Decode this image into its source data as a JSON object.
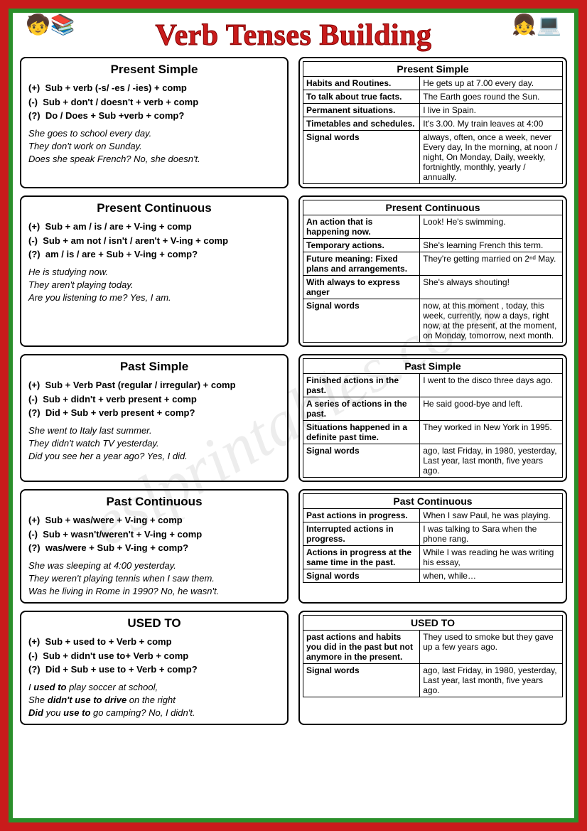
{
  "page_title": "Verb Tenses Building",
  "watermark": "eslprintables.com",
  "sections": [
    {
      "left": {
        "title": "Present Simple",
        "formulas": [
          {
            "sign": "(+)",
            "text": "Sub + verb (-s/ -es / -ies) + comp"
          },
          {
            "sign": "(-)",
            "text": "Sub + don't / doesn't + verb + comp"
          },
          {
            "sign": "(?)",
            "text": "Do / Does + Sub +verb + comp?"
          }
        ],
        "examples": [
          "She goes to school every day.",
          "They don't work on Sunday.",
          "Does she speak French? No, she doesn't."
        ]
      },
      "right": {
        "title": "Present Simple",
        "rows": [
          {
            "label": "Habits and Routines.",
            "ex": "He gets up at 7.00 every day."
          },
          {
            "label": "To talk about true facts.",
            "ex": "The Earth goes round the Sun."
          },
          {
            "label": "Permanent situations.",
            "ex": "I live in Spain."
          },
          {
            "label": "Timetables and schedules.",
            "ex": "It's 3.00. My train leaves at 4:00"
          },
          {
            "label": "Signal words",
            "ex": "always, often, once a week, never Every day, In the morning, at noon / night, On Monday, Daily, weekly, fortnightly, monthly, yearly / annually."
          }
        ]
      }
    },
    {
      "left": {
        "title": "Present Continuous",
        "formulas": [
          {
            "sign": "(+)",
            "text": "Sub + am / is / are + V-ing + comp"
          },
          {
            "sign": "(-)",
            "text": "Sub + am not / isn't / aren't + V-ing + comp"
          },
          {
            "sign": "(?)",
            "text": "am / is / are + Sub + V-ing + comp?"
          }
        ],
        "examples": [
          "He is studying now.",
          "They aren't playing today.",
          "Are you listening to me? Yes, I am."
        ]
      },
      "right": {
        "title": "Present Continuous",
        "rows": [
          {
            "label": "An action that is happening now.",
            "ex": "Look! He's swimming."
          },
          {
            "label": "Temporary actions.",
            "ex": "She's learning French this term."
          },
          {
            "label": "Future meaning: Fixed plans and arrangements.",
            "ex": "They're getting married on 2ⁿᵈ May."
          },
          {
            "label": "With always to express anger",
            "ex": "She's always shouting!"
          },
          {
            "label": "Signal words",
            "ex": "now, at this moment , today, this week, currently, now a days, right now, at the present, at the moment, on Monday, tomorrow, next month."
          }
        ]
      }
    },
    {
      "left": {
        "title": "Past Simple",
        "formulas": [
          {
            "sign": "(+)",
            "text": "Sub + Verb Past (regular / irregular) + comp"
          },
          {
            "sign": "(-)",
            "text": "Sub + didn't + verb present + comp"
          },
          {
            "sign": "(?)",
            "text": "Did + Sub + verb present + comp?"
          }
        ],
        "examples": [
          "She went to Italy last summer.",
          "They didn't watch TV yesterday.",
          "Did you see her a year ago? Yes, I did."
        ]
      },
      "right": {
        "title": "Past Simple",
        "rows": [
          {
            "label": "Finished actions in the past.",
            "ex": "I went to the disco three days ago."
          },
          {
            "label": "A series of actions in the past.",
            "ex": "He said good-bye and left."
          },
          {
            "label": "Situations happened in a definite past time.",
            "ex": "They worked in New York in 1995."
          },
          {
            "label": "Signal words",
            "ex": "ago, last Friday, in 1980, yesterday, Last year, last month, five years ago."
          }
        ]
      }
    },
    {
      "left": {
        "title": "Past Continuous",
        "formulas": [
          {
            "sign": "(+)",
            "text": "Sub + was/were + V-ing + comp"
          },
          {
            "sign": "(-)",
            "text": "Sub + wasn't/weren't + V-ing + comp"
          },
          {
            "sign": "(?)",
            "text": "was/were + Sub + V-ing + comp?"
          }
        ],
        "examples": [
          "She was sleeping at 4:00 yesterday.",
          "They weren't playing tennis when I saw them.",
          "Was he living in Rome in 1990? No, he wasn't."
        ]
      },
      "right": {
        "title": "Past Continuous",
        "rows": [
          {
            "label": "Past actions in progress.",
            "ex": "When I saw Paul, he was playing."
          },
          {
            "label": "Interrupted actions in progress.",
            "ex": "I was talking to Sara when the phone rang."
          },
          {
            "label": "Actions in progress at the same time in the past.",
            "ex": "While I was reading he was writing his essay,"
          },
          {
            "label": "Signal words",
            "ex": "when, while…"
          }
        ]
      }
    },
    {
      "left": {
        "title": "USED TO",
        "formulas": [
          {
            "sign": "(+)",
            "text": "Sub + used to + Verb + comp"
          },
          {
            "sign": "(-)",
            "text": "Sub + didn't use to+ Verb + comp"
          },
          {
            "sign": "(?)",
            "text": "Did + Sub + use to + Verb + comp?"
          }
        ],
        "examples_html": [
          "I <b>used to</b> play soccer at school,",
          "She <b>didn't use to drive</b> on the right",
          "<b>Did</b> you <b>use to</b> go camping? No, I didn't."
        ]
      },
      "right": {
        "title": "USED TO",
        "rows": [
          {
            "label": "past actions and habits you did in the past but not anymore in the present.",
            "ex": "They used to smoke but they gave up a few years ago."
          },
          {
            "label": "Signal words",
            "ex": "ago, last Friday, in 1980, yesterday, Last year, last month, five years ago."
          }
        ]
      }
    }
  ]
}
